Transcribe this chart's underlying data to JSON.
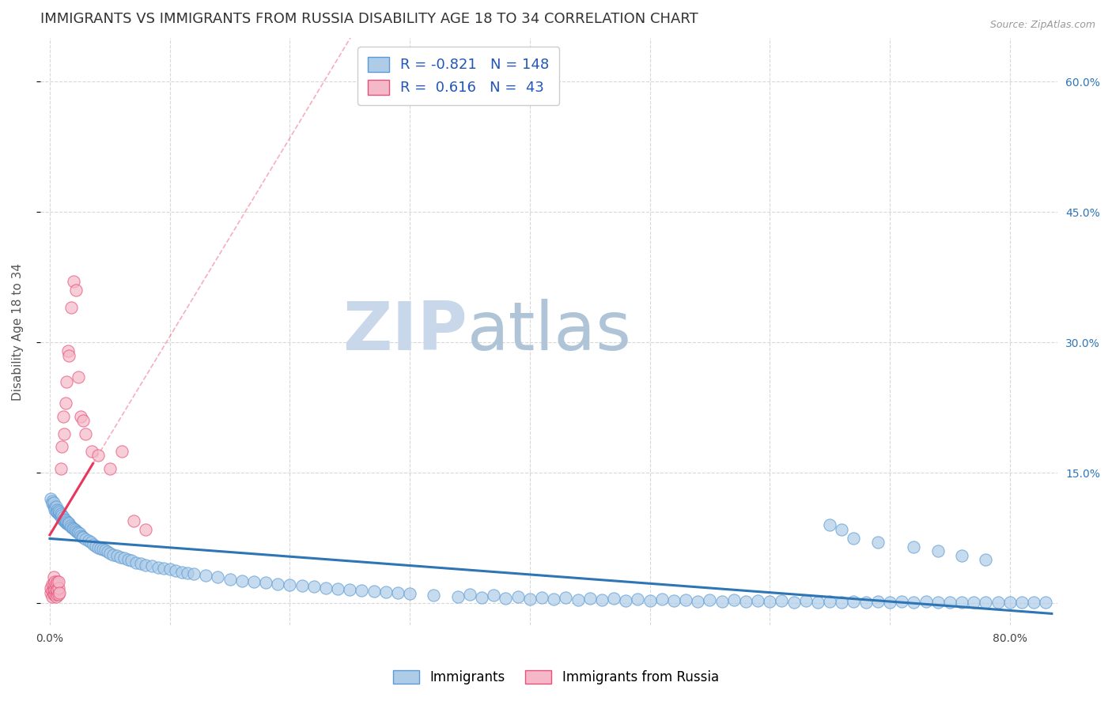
{
  "title": "IMMIGRANTS VS IMMIGRANTS FROM RUSSIA DISABILITY AGE 18 TO 34 CORRELATION CHART",
  "source": "Source: ZipAtlas.com",
  "ylabel": "Disability Age 18 to 34",
  "xlim": [
    -0.008,
    0.84
  ],
  "ylim": [
    -0.025,
    0.65
  ],
  "R_immigrants": -0.821,
  "N_immigrants": 148,
  "R_russia": 0.616,
  "N_russia": 43,
  "legend_labels": [
    "Immigrants",
    "Immigrants from Russia"
  ],
  "immigrants_color": "#aecce8",
  "immigrants_edge_color": "#5b9bd5",
  "immigrants_line_color": "#2e75b6",
  "russia_color": "#f4b8c8",
  "russia_edge_color": "#e8507a",
  "russia_line_color": "#e8365d",
  "background_color": "#ffffff",
  "grid_color": "#d8d8d8",
  "watermark_zip_color": "#c8d8e8",
  "watermark_atlas_color": "#b8c8d8",
  "title_fontsize": 13,
  "axis_label_fontsize": 11,
  "tick_fontsize": 10,
  "legend_fontsize": 12,
  "x_ticks": [
    0.0,
    0.1,
    0.2,
    0.3,
    0.4,
    0.5,
    0.6,
    0.7,
    0.8
  ],
  "x_tick_labels": [
    "0.0%",
    "",
    "",
    "",
    "",
    "",
    "",
    "",
    "80.0%"
  ],
  "y_ticks": [
    0.0,
    0.15,
    0.3,
    0.45,
    0.6
  ],
  "y_tick_labels_right": [
    "",
    "15.0%",
    "30.0%",
    "45.0%",
    "60.0%"
  ],
  "imm_x": [
    0.001,
    0.002,
    0.002,
    0.003,
    0.003,
    0.004,
    0.004,
    0.005,
    0.005,
    0.006,
    0.006,
    0.007,
    0.007,
    0.008,
    0.008,
    0.009,
    0.009,
    0.01,
    0.01,
    0.011,
    0.011,
    0.012,
    0.012,
    0.013,
    0.013,
    0.014,
    0.014,
    0.015,
    0.015,
    0.016,
    0.016,
    0.017,
    0.018,
    0.019,
    0.02,
    0.021,
    0.022,
    0.023,
    0.024,
    0.025,
    0.026,
    0.027,
    0.028,
    0.03,
    0.032,
    0.034,
    0.036,
    0.038,
    0.04,
    0.042,
    0.044,
    0.046,
    0.048,
    0.05,
    0.053,
    0.056,
    0.059,
    0.062,
    0.065,
    0.068,
    0.072,
    0.076,
    0.08,
    0.085,
    0.09,
    0.095,
    0.1,
    0.105,
    0.11,
    0.115,
    0.12,
    0.13,
    0.14,
    0.15,
    0.16,
    0.17,
    0.18,
    0.19,
    0.2,
    0.21,
    0.22,
    0.23,
    0.24,
    0.25,
    0.26,
    0.27,
    0.28,
    0.29,
    0.3,
    0.32,
    0.34,
    0.36,
    0.38,
    0.4,
    0.42,
    0.44,
    0.46,
    0.48,
    0.5,
    0.52,
    0.54,
    0.56,
    0.58,
    0.6,
    0.62,
    0.64,
    0.66,
    0.68,
    0.7,
    0.72,
    0.74,
    0.76,
    0.78,
    0.8,
    0.82,
    0.35,
    0.37,
    0.39,
    0.41,
    0.43,
    0.45,
    0.47,
    0.49,
    0.51,
    0.53,
    0.55,
    0.57,
    0.59,
    0.61,
    0.63,
    0.65,
    0.67,
    0.69,
    0.71,
    0.73,
    0.75,
    0.77,
    0.79,
    0.81,
    0.83,
    0.65,
    0.66,
    0.67,
    0.69,
    0.72,
    0.74,
    0.76,
    0.78
  ],
  "imm_y": [
    0.12,
    0.118,
    0.115,
    0.112,
    0.116,
    0.11,
    0.108,
    0.106,
    0.111,
    0.108,
    0.105,
    0.103,
    0.107,
    0.102,
    0.105,
    0.1,
    0.103,
    0.098,
    0.101,
    0.096,
    0.099,
    0.095,
    0.097,
    0.093,
    0.096,
    0.092,
    0.094,
    0.091,
    0.093,
    0.09,
    0.092,
    0.089,
    0.088,
    0.087,
    0.086,
    0.085,
    0.083,
    0.082,
    0.081,
    0.08,
    0.078,
    0.077,
    0.076,
    0.074,
    0.072,
    0.07,
    0.068,
    0.066,
    0.064,
    0.063,
    0.062,
    0.061,
    0.059,
    0.058,
    0.056,
    0.055,
    0.053,
    0.052,
    0.05,
    0.049,
    0.047,
    0.046,
    0.044,
    0.043,
    0.041,
    0.04,
    0.039,
    0.038,
    0.036,
    0.035,
    0.034,
    0.032,
    0.03,
    0.028,
    0.026,
    0.025,
    0.024,
    0.022,
    0.021,
    0.02,
    0.019,
    0.018,
    0.017,
    0.016,
    0.015,
    0.014,
    0.013,
    0.012,
    0.011,
    0.009,
    0.008,
    0.007,
    0.006,
    0.005,
    0.005,
    0.004,
    0.004,
    0.003,
    0.003,
    0.003,
    0.002,
    0.002,
    0.002,
    0.002,
    0.001,
    0.001,
    0.001,
    0.001,
    0.001,
    0.001,
    0.001,
    0.001,
    0.001,
    0.001,
    0.001,
    0.01,
    0.009,
    0.008,
    0.007,
    0.007,
    0.006,
    0.006,
    0.005,
    0.005,
    0.004,
    0.004,
    0.004,
    0.003,
    0.003,
    0.003,
    0.002,
    0.002,
    0.002,
    0.002,
    0.002,
    0.001,
    0.001,
    0.001,
    0.001,
    0.001,
    0.09,
    0.085,
    0.075,
    0.07,
    0.065,
    0.06,
    0.055,
    0.05
  ],
  "rus_x": [
    0.001,
    0.001,
    0.002,
    0.002,
    0.002,
    0.003,
    0.003,
    0.003,
    0.003,
    0.004,
    0.004,
    0.004,
    0.005,
    0.005,
    0.005,
    0.006,
    0.006,
    0.006,
    0.007,
    0.007,
    0.007,
    0.008,
    0.009,
    0.01,
    0.011,
    0.012,
    0.013,
    0.014,
    0.015,
    0.016,
    0.018,
    0.02,
    0.022,
    0.024,
    0.026,
    0.028,
    0.03,
    0.035,
    0.04,
    0.05,
    0.06,
    0.07,
    0.08
  ],
  "rus_y": [
    0.012,
    0.018,
    0.008,
    0.015,
    0.022,
    0.01,
    0.016,
    0.022,
    0.03,
    0.01,
    0.016,
    0.025,
    0.008,
    0.015,
    0.022,
    0.01,
    0.016,
    0.025,
    0.01,
    0.018,
    0.025,
    0.012,
    0.155,
    0.18,
    0.215,
    0.195,
    0.23,
    0.255,
    0.29,
    0.285,
    0.34,
    0.37,
    0.36,
    0.26,
    0.215,
    0.21,
    0.195,
    0.175,
    0.17,
    0.155,
    0.175,
    0.095,
    0.085
  ]
}
